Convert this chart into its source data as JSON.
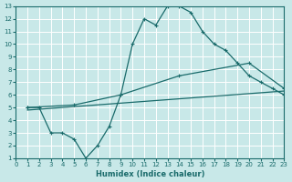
{
  "xlabel": "Humidex (Indice chaleur)",
  "xlim": [
    0,
    23
  ],
  "ylim": [
    1,
    13
  ],
  "xticks": [
    0,
    1,
    2,
    3,
    4,
    5,
    6,
    7,
    8,
    9,
    10,
    11,
    12,
    13,
    14,
    15,
    16,
    17,
    18,
    19,
    20,
    21,
    22,
    23
  ],
  "yticks": [
    1,
    2,
    3,
    4,
    5,
    6,
    7,
    8,
    9,
    10,
    11,
    12,
    13
  ],
  "bg_color": "#c8e8e8",
  "line_color": "#1a6b6b",
  "grid_color": "#ffffff",
  "line1_x": [
    1,
    2,
    3,
    4,
    5,
    6,
    7,
    8,
    9,
    10,
    11,
    12,
    13,
    14,
    15,
    16,
    17,
    18,
    19,
    20,
    21,
    22,
    23
  ],
  "line1_y": [
    5,
    5,
    3,
    3,
    2.5,
    1,
    2,
    3.5,
    6,
    10,
    12,
    11.5,
    13,
    13,
    12.5,
    11,
    10,
    9.5,
    8.5,
    7.5,
    7,
    6.5,
    6.0
  ],
  "line2_x": [
    1,
    5,
    9,
    14,
    20,
    23
  ],
  "line2_y": [
    5,
    5.2,
    6,
    7.5,
    8.5,
    6.5
  ],
  "line3_x": [
    1,
    23
  ],
  "line3_y": [
    4.8,
    6.3
  ]
}
